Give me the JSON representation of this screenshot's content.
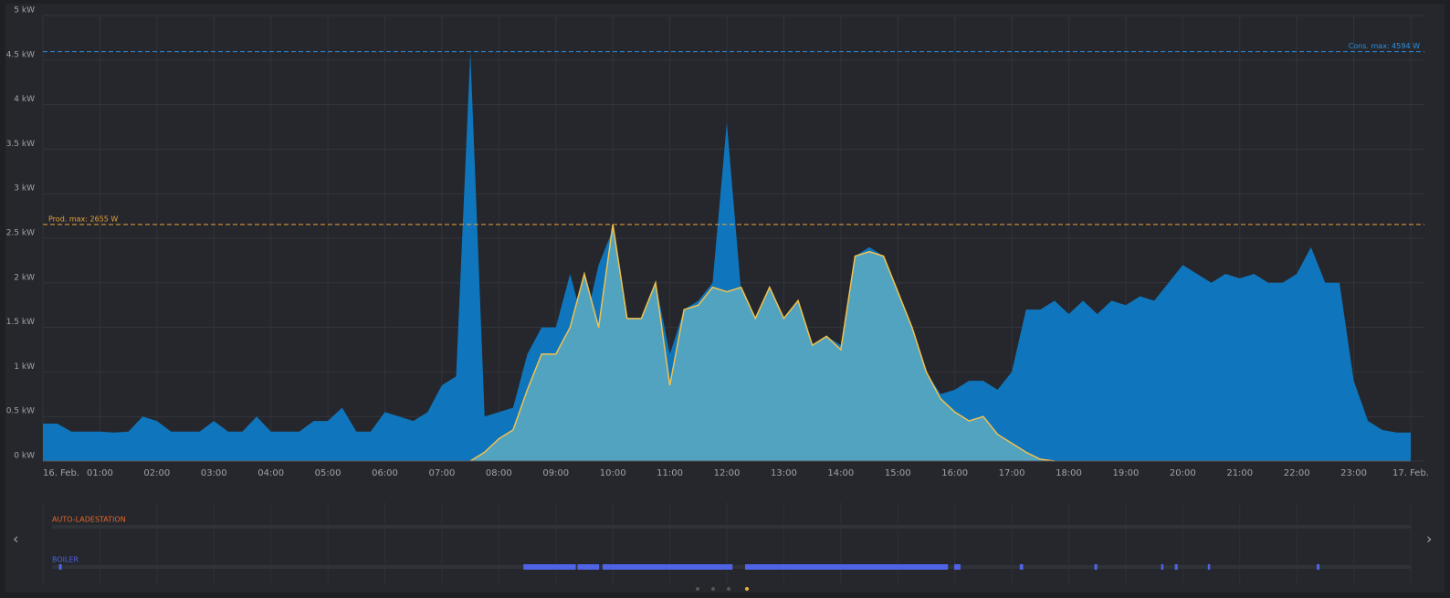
{
  "chart_data": {
    "type": "area",
    "x": [
      0,
      0.25,
      0.5,
      0.75,
      1,
      1.25,
      1.5,
      1.75,
      2,
      2.25,
      2.5,
      2.75,
      3,
      3.25,
      3.5,
      3.75,
      4,
      4.25,
      4.5,
      4.75,
      5,
      5.25,
      5.5,
      5.75,
      6,
      6.25,
      6.5,
      6.75,
      7,
      7.25,
      7.5,
      7.75,
      8,
      8.25,
      8.5,
      8.75,
      9,
      9.25,
      9.5,
      9.75,
      10,
      10.25,
      10.5,
      10.75,
      11,
      11.25,
      11.5,
      11.75,
      12,
      12.25,
      12.5,
      12.75,
      13,
      13.25,
      13.5,
      13.75,
      14,
      14.25,
      14.5,
      14.75,
      15,
      15.25,
      15.5,
      15.75,
      16,
      16.25,
      16.5,
      16.75,
      17,
      17.25,
      17.5,
      17.75,
      18,
      18.25,
      18.5,
      18.75,
      19,
      19.25,
      19.5,
      19.75,
      20,
      20.25,
      20.5,
      20.75,
      21,
      21.25,
      21.5,
      21.75,
      22,
      22.25,
      22.5,
      22.75,
      23,
      23.25,
      23.5,
      23.75,
      24
    ],
    "series": [
      {
        "color": "#0f76bd",
        "values": [
          0.42,
          0.42,
          0.33,
          0.33,
          0.33,
          0.32,
          0.33,
          0.5,
          0.45,
          0.33,
          0.33,
          0.33,
          0.45,
          0.33,
          0.33,
          0.5,
          0.33,
          0.33,
          0.33,
          0.45,
          0.45,
          0.6,
          0.33,
          0.33,
          0.55,
          0.5,
          0.45,
          0.55,
          0.85,
          0.95,
          4.594,
          0.5,
          0.55,
          0.6,
          1.2,
          1.5,
          1.5,
          2.1,
          1.5,
          2.2,
          2.6,
          1.6,
          1.6,
          2.0,
          1.2,
          1.7,
          1.8,
          2.0,
          3.8,
          1.9,
          1.6,
          1.9,
          1.6,
          1.8,
          1.3,
          1.4,
          1.3,
          2.3,
          2.4,
          2.3,
          1.9,
          1.5,
          1.0,
          0.75,
          0.8,
          0.9,
          0.9,
          0.8,
          1.0,
          1.7,
          1.7,
          1.8,
          1.65,
          1.8,
          1.65,
          1.8,
          1.75,
          1.85,
          1.8,
          2.0,
          2.2,
          2.1,
          2.0,
          2.1,
          2.05,
          2.1,
          2.0,
          2.0,
          2.1,
          2.4,
          2.0,
          2.0,
          0.9,
          0.45,
          0.35,
          0.32,
          0.32
        ]
      },
      {
        "color": "#52a3bf",
        "line_color": "#f2c14e",
        "values": [
          null,
          null,
          null,
          null,
          null,
          null,
          null,
          null,
          null,
          null,
          null,
          null,
          null,
          null,
          null,
          null,
          null,
          null,
          null,
          null,
          null,
          null,
          null,
          null,
          null,
          null,
          null,
          null,
          null,
          null,
          0,
          0.1,
          0.25,
          0.35,
          0.8,
          1.2,
          1.2,
          1.5,
          2.1,
          1.5,
          2.655,
          1.6,
          1.6,
          2.0,
          0.85,
          1.7,
          1.75,
          1.95,
          1.9,
          1.95,
          1.6,
          1.95,
          1.6,
          1.8,
          1.3,
          1.4,
          1.25,
          2.3,
          2.35,
          2.3,
          1.9,
          1.5,
          1.0,
          0.7,
          0.55,
          0.45,
          0.5,
          0.3,
          0.2,
          0.1,
          0.02,
          0,
          null,
          null,
          null,
          null,
          null,
          null,
          null,
          null,
          null,
          null,
          null,
          null,
          null,
          null,
          null,
          null,
          null,
          null,
          null,
          null,
          null,
          null,
          null,
          null,
          null
        ]
      }
    ],
    "xlim": [
      0,
      24
    ],
    "xticks": [
      {
        "value": 0,
        "label": "16. Feb."
      },
      {
        "value": 1,
        "label": "01:00"
      },
      {
        "value": 2,
        "label": "02:00"
      },
      {
        "value": 3,
        "label": "03:00"
      },
      {
        "value": 4,
        "label": "04:00"
      },
      {
        "value": 5,
        "label": "05:00"
      },
      {
        "value": 6,
        "label": "06:00"
      },
      {
        "value": 7,
        "label": "07:00"
      },
      {
        "value": 8,
        "label": "08:00"
      },
      {
        "value": 9,
        "label": "09:00"
      },
      {
        "value": 10,
        "label": "10:00"
      },
      {
        "value": 11,
        "label": "11:00"
      },
      {
        "value": 12,
        "label": "12:00"
      },
      {
        "value": 13,
        "label": "13:00"
      },
      {
        "value": 14,
        "label": "14:00"
      },
      {
        "value": 15,
        "label": "15:00"
      },
      {
        "value": 16,
        "label": "16:00"
      },
      {
        "value": 17,
        "label": "17:00"
      },
      {
        "value": 18,
        "label": "18:00"
      },
      {
        "value": 19,
        "label": "19:00"
      },
      {
        "value": 20,
        "label": "20:00"
      },
      {
        "value": 21,
        "label": "21:00"
      },
      {
        "value": 22,
        "label": "22:00"
      },
      {
        "value": 23,
        "label": "23:00"
      },
      {
        "value": 24,
        "label": "17. Feb."
      }
    ],
    "ylim": [
      0,
      5
    ],
    "yticks": [
      {
        "value": 0,
        "label": "0 kW"
      },
      {
        "value": 0.5,
        "label": "0.5 kW"
      },
      {
        "value": 1,
        "label": "1 kW"
      },
      {
        "value": 1.5,
        "label": "1.5 kW"
      },
      {
        "value": 2,
        "label": "2 kW"
      },
      {
        "value": 2.5,
        "label": "2.5 kW"
      },
      {
        "value": 3,
        "label": "3 kW"
      },
      {
        "value": 3.5,
        "label": "3.5 kW"
      },
      {
        "value": 4,
        "label": "4 kW"
      },
      {
        "value": 4.5,
        "label": "4.5 kW"
      },
      {
        "value": 5,
        "label": "5 kW"
      }
    ],
    "grid": true,
    "annotations": [
      {
        "label": "Cons. max: 4594 W",
        "value": 4.594,
        "color": "#2f8fe0",
        "position": "right"
      },
      {
        "label": "Prod. max: 2655 W",
        "value": 2.655,
        "color": "#e8a23a",
        "position": "left"
      }
    ],
    "timeline": [
      {
        "name": "AUTO-LADESTATION",
        "color": "#e8672a",
        "segments": []
      },
      {
        "name": "BOILER",
        "color": "#4f63e6",
        "segments": [
          [
            0.28,
            0.33
          ],
          [
            8.43,
            9.35
          ],
          [
            9.38,
            9.76
          ],
          [
            9.82,
            12.1
          ],
          [
            12.32,
            15.88
          ],
          [
            15.99,
            16.1
          ],
          [
            17.14,
            17.2
          ],
          [
            18.45,
            18.5
          ],
          [
            19.62,
            19.66
          ],
          [
            19.86,
            19.91
          ],
          [
            20.44,
            20.48
          ],
          [
            22.35,
            22.4
          ]
        ]
      }
    ]
  }
}
